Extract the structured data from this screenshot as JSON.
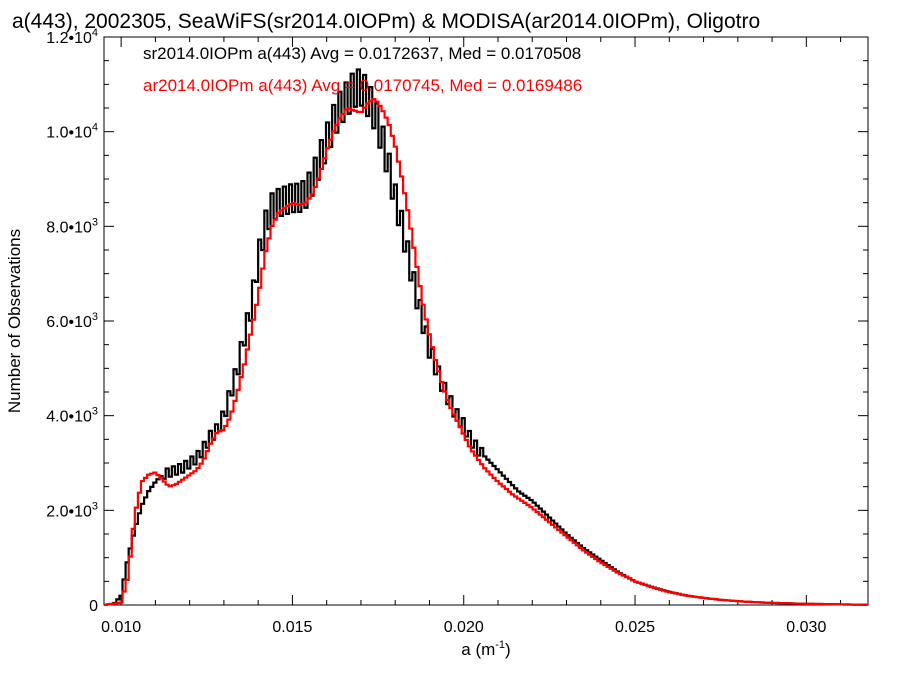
{
  "chart_data": {
    "type": "line",
    "title": "a(443), 2002305, SeaWiFS(sr2014.0IOPm) & MODISA(ar2014.0IOPm), Oligotro",
    "xlabel": "a (m",
    "xlabel_exp": "-1",
    "xlabel_close": ")",
    "ylabel": "Number of Observations",
    "xlim": [
      0.0095,
      0.0318
    ],
    "ylim": [
      0,
      12000
    ],
    "x_ticks": [
      0.01,
      0.015,
      0.02,
      0.025,
      0.03
    ],
    "x_tick_labels": [
      "0.010",
      "0.015",
      "0.020",
      "0.025",
      "0.030"
    ],
    "y_ticks": [
      0,
      2000,
      4000,
      6000,
      8000,
      10000,
      12000
    ],
    "y_tick_labels": [
      {
        "mant": "0",
        "exp": ""
      },
      {
        "mant": "2.0•10",
        "exp": "3"
      },
      {
        "mant": "4.0•10",
        "exp": "3"
      },
      {
        "mant": "6.0•10",
        "exp": "3"
      },
      {
        "mant": "8.0•10",
        "exp": "3"
      },
      {
        "mant": "1.0•10",
        "exp": "4"
      },
      {
        "mant": "1.2•10",
        "exp": "4"
      }
    ],
    "grid": false,
    "legend_position": "top-left",
    "series": [
      {
        "name": "sr2014.0IOPm a(443) Avg = 0.0172637, Med = 0.0170508",
        "color": "#000000",
        "jagged": true,
        "x": [
          0.0095,
          0.0098,
          0.01,
          0.0102,
          0.0104,
          0.0106,
          0.0108,
          0.011,
          0.0112,
          0.0114,
          0.0116,
          0.0118,
          0.012,
          0.0122,
          0.0124,
          0.0126,
          0.0128,
          0.013,
          0.0132,
          0.0134,
          0.0136,
          0.0138,
          0.014,
          0.0142,
          0.0144,
          0.0146,
          0.0148,
          0.015,
          0.0152,
          0.0154,
          0.0156,
          0.0158,
          0.016,
          0.0162,
          0.0164,
          0.0166,
          0.0168,
          0.017,
          0.0172,
          0.0174,
          0.0176,
          0.0178,
          0.018,
          0.0182,
          0.0184,
          0.0186,
          0.0188,
          0.019,
          0.0192,
          0.0194,
          0.0196,
          0.0198,
          0.02,
          0.0202,
          0.0204,
          0.0206,
          0.0208,
          0.021,
          0.0212,
          0.0214,
          0.0216,
          0.0218,
          0.022,
          0.0225,
          0.023,
          0.0235,
          0.024,
          0.0245,
          0.025,
          0.0255,
          0.026,
          0.0265,
          0.027,
          0.0275,
          0.028,
          0.0285,
          0.029,
          0.0295,
          0.03,
          0.0305,
          0.031,
          0.0318
        ],
        "y": [
          0,
          30,
          200,
          1000,
          1600,
          2100,
          2400,
          2600,
          2750,
          2800,
          2850,
          2900,
          3000,
          3100,
          3300,
          3550,
          3700,
          4000,
          4500,
          5000,
          5700,
          6300,
          7300,
          8000,
          8400,
          8500,
          8550,
          8600,
          8600,
          8700,
          9000,
          9400,
          9800,
          10200,
          10500,
          10700,
          10900,
          10950,
          10700,
          10400,
          9900,
          9300,
          8600,
          8000,
          7300,
          6600,
          6000,
          5400,
          5000,
          4600,
          4300,
          4000,
          3800,
          3500,
          3300,
          3150,
          3000,
          2850,
          2700,
          2550,
          2400,
          2300,
          2200,
          1850,
          1500,
          1200,
          950,
          700,
          500,
          380,
          280,
          200,
          150,
          110,
          80,
          60,
          45,
          35,
          25,
          20,
          12,
          5
        ]
      },
      {
        "name": "ar2014.0IOPm a(443) Avg = 0.0170745, Med = 0.0169486",
        "color": "#ff0000",
        "jagged": false,
        "x": [
          0.0095,
          0.01,
          0.0102,
          0.0104,
          0.0106,
          0.0108,
          0.011,
          0.0112,
          0.0114,
          0.0116,
          0.0118,
          0.012,
          0.0122,
          0.0124,
          0.0126,
          0.0128,
          0.013,
          0.0132,
          0.0134,
          0.0136,
          0.0138,
          0.014,
          0.0142,
          0.0144,
          0.0146,
          0.0148,
          0.015,
          0.0152,
          0.0154,
          0.0156,
          0.0158,
          0.016,
          0.0162,
          0.0164,
          0.0166,
          0.0168,
          0.017,
          0.0172,
          0.0174,
          0.0176,
          0.0178,
          0.018,
          0.0182,
          0.0184,
          0.0186,
          0.0188,
          0.019,
          0.0192,
          0.0194,
          0.0196,
          0.0198,
          0.02,
          0.0202,
          0.0204,
          0.0206,
          0.0208,
          0.021,
          0.0212,
          0.0214,
          0.0216,
          0.0218,
          0.022,
          0.0225,
          0.023,
          0.0235,
          0.024,
          0.0245,
          0.025,
          0.0255,
          0.026,
          0.0265,
          0.027,
          0.0275,
          0.028,
          0.0285,
          0.029,
          0.0295,
          0.03,
          0.0305,
          0.031,
          0.0318
        ],
        "y": [
          0,
          50,
          600,
          1900,
          2600,
          2750,
          2800,
          2650,
          2500,
          2550,
          2650,
          2750,
          2850,
          3050,
          3400,
          3650,
          3700,
          4000,
          4500,
          5100,
          5800,
          6500,
          7400,
          8000,
          8300,
          8400,
          8500,
          8450,
          8500,
          8700,
          9100,
          9600,
          10000,
          10300,
          10500,
          10450,
          10400,
          10600,
          10700,
          10500,
          10200,
          9700,
          9000,
          8200,
          7300,
          6400,
          5700,
          5100,
          4600,
          4200,
          3900,
          3600,
          3300,
          3100,
          2900,
          2750,
          2600,
          2480,
          2350,
          2250,
          2150,
          2050,
          1750,
          1450,
          1150,
          900,
          680,
          500,
          370,
          270,
          200,
          150,
          110,
          80,
          60,
          45,
          35,
          25,
          20,
          12,
          5
        ]
      }
    ]
  }
}
